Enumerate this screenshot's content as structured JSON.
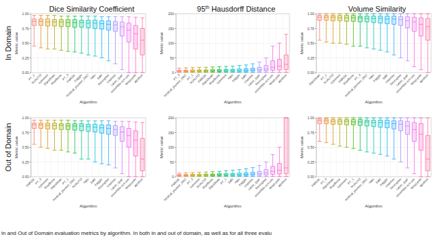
{
  "column_titles": [
    "Dice Similarity Coefficient",
    "95th Hausdorff Distance",
    "Volume Similarity"
  ],
  "row_labels": [
    "In Domain",
    "Out of Domain"
  ],
  "caption": "in and Out of Domain evaluation metrics by algorithm. In both in and out of domain, as well as for all three evalu",
  "chart_data": [
    {
      "type": "boxplot",
      "x_label": "Algorithm",
      "y_label": "Metric value",
      "grid": true,
      "ylim": [
        0,
        1
      ],
      "yticks": [
        {
          "value": 0,
          "label": "0.00"
        },
        {
          "value": 0.25,
          "label": "0.25"
        },
        {
          "value": 0.5,
          "label": "0.50"
        },
        {
          "value": 0.75,
          "label": "0.75"
        },
        {
          "value": 1,
          "label": "1.00"
        }
      ],
      "categories": [
        "PT_1",
        "NVAUTO",
        "kymenen",
        "Blackbean",
        "Bluefbone",
        "PT_3",
        "FMRSK",
        "Kaggle",
        "medical_pioneer_DBC",
        "Halo",
        "Sabi",
        "Neurophet",
        "Unterlee",
        "Lazer_quar",
        "ensemble-ocn-sim",
        "deepsynth",
        "apxthon"
      ],
      "colors": [
        "#F8766D",
        "#E7851E",
        "#D09400",
        "#B2A100",
        "#89AC00",
        "#45B500",
        "#00BC51",
        "#00C087",
        "#00C0B2",
        "#00BCD6",
        "#00B3F2",
        "#29A3FF",
        "#9C8DFF",
        "#D277FF",
        "#F166E8",
        "#FF61C7",
        "#FF689E"
      ],
      "values": [
        [
          0.45,
          0.8,
          0.87,
          0.91,
          0.97
        ],
        [
          0.42,
          0.8,
          0.87,
          0.91,
          0.97
        ],
        [
          0.4,
          0.79,
          0.86,
          0.91,
          0.97
        ],
        [
          0.4,
          0.79,
          0.86,
          0.9,
          0.97
        ],
        [
          0.38,
          0.78,
          0.86,
          0.9,
          0.96
        ],
        [
          0.36,
          0.78,
          0.85,
          0.9,
          0.96
        ],
        [
          0.35,
          0.77,
          0.85,
          0.9,
          0.96
        ],
        [
          0.33,
          0.77,
          0.85,
          0.89,
          0.96
        ],
        [
          0.3,
          0.76,
          0.84,
          0.89,
          0.96
        ],
        [
          0.28,
          0.75,
          0.84,
          0.89,
          0.96
        ],
        [
          0.25,
          0.74,
          0.83,
          0.88,
          0.95
        ],
        [
          0.2,
          0.72,
          0.82,
          0.88,
          0.95
        ],
        [
          0.15,
          0.7,
          0.81,
          0.87,
          0.95
        ],
        [
          0.05,
          0.62,
          0.78,
          0.86,
          0.95
        ],
        [
          0.0,
          0.52,
          0.72,
          0.84,
          0.95
        ],
        [
          0.0,
          0.4,
          0.66,
          0.8,
          0.94
        ],
        [
          0.0,
          0.3,
          0.55,
          0.75,
          0.93
        ]
      ]
    },
    {
      "type": "boxplot",
      "x_label": "Algorithm",
      "y_label": "Metric value",
      "grid": true,
      "ylim": [
        0,
        200
      ],
      "yticks": [
        0,
        50,
        100,
        150,
        200
      ],
      "categories": [
        "PT_3",
        "medical_pioneer_DBC",
        "PT_1",
        "NVAUTO",
        "FMRSK",
        "Blackbean",
        "Bluefbone",
        "kymenen",
        "Halo",
        "Kaggle",
        "Sabi",
        "Unterlee",
        "Lazer_quar",
        "Neurophet",
        "ensemble-ocn-sim",
        "deepsynth",
        "apxthon"
      ],
      "colors": [
        "#F8766D",
        "#E7851E",
        "#D09400",
        "#B2A100",
        "#89AC00",
        "#45B500",
        "#00BC51",
        "#00C087",
        "#00C0B2",
        "#00BCD6",
        "#00B3F2",
        "#29A3FF",
        "#9C8DFF",
        "#D277FF",
        "#F166E8",
        "#FF61C7",
        "#FF689E"
      ],
      "values": [
        [
          1,
          3,
          5,
          8,
          15
        ],
        [
          1,
          3,
          5,
          8,
          16
        ],
        [
          1,
          3,
          5,
          9,
          17
        ],
        [
          1,
          3,
          6,
          9,
          18
        ],
        [
          1,
          3,
          6,
          9,
          18
        ],
        [
          1,
          4,
          6,
          10,
          19
        ],
        [
          1,
          4,
          6,
          10,
          20
        ],
        [
          1,
          4,
          7,
          11,
          21
        ],
        [
          1,
          4,
          7,
          11,
          22
        ],
        [
          1,
          4,
          7,
          12,
          24
        ],
        [
          1,
          4,
          8,
          13,
          26
        ],
        [
          1,
          5,
          9,
          15,
          30
        ],
        [
          1,
          5,
          10,
          18,
          36
        ],
        [
          1,
          6,
          12,
          24,
          50
        ],
        [
          1,
          8,
          18,
          40,
          90
        ],
        [
          1,
          9,
          22,
          45,
          100
        ],
        [
          1,
          10,
          28,
          60,
          130
        ]
      ]
    },
    {
      "type": "boxplot",
      "x_label": "Algorithm",
      "y_label": "Metric value",
      "grid": true,
      "ylim": [
        0,
        1
      ],
      "yticks": [
        {
          "value": 0,
          "label": "0.00"
        },
        {
          "value": 0.25,
          "label": "0.25"
        },
        {
          "value": 0.5,
          "label": "0.50"
        },
        {
          "value": 0.75,
          "label": "0.75"
        },
        {
          "value": 1,
          "label": "1.00"
        }
      ],
      "categories": [
        "Blackbean",
        "PT_1",
        "NVAUTO",
        "kymenen",
        "FMRSK",
        "Bluefbone",
        "PT_3",
        "medical_pioneer_DBC",
        "Halo",
        "Kaggle",
        "Sabi",
        "Unterlee",
        "Neurophet",
        "Lazer_quar",
        "ensemble-ocn-sim",
        "deepsynth",
        "apxthon"
      ],
      "colors": [
        "#F8766D",
        "#E7851E",
        "#D09400",
        "#B2A100",
        "#89AC00",
        "#45B500",
        "#00BC51",
        "#00C087",
        "#00C0B2",
        "#00BCD6",
        "#00B3F2",
        "#29A3FF",
        "#9C8DFF",
        "#D277FF",
        "#F166E8",
        "#FF61C7",
        "#FF689E"
      ],
      "values": [
        [
          0.55,
          0.89,
          0.94,
          0.97,
          1.0
        ],
        [
          0.52,
          0.89,
          0.94,
          0.97,
          1.0
        ],
        [
          0.5,
          0.88,
          0.94,
          0.97,
          1.0
        ],
        [
          0.5,
          0.88,
          0.93,
          0.97,
          1.0
        ],
        [
          0.48,
          0.87,
          0.93,
          0.97,
          1.0
        ],
        [
          0.45,
          0.87,
          0.93,
          0.97,
          1.0
        ],
        [
          0.45,
          0.86,
          0.93,
          0.96,
          1.0
        ],
        [
          0.42,
          0.86,
          0.92,
          0.96,
          1.0
        ],
        [
          0.4,
          0.85,
          0.92,
          0.96,
          1.0
        ],
        [
          0.38,
          0.84,
          0.92,
          0.96,
          1.0
        ],
        [
          0.35,
          0.83,
          0.91,
          0.96,
          1.0
        ],
        [
          0.3,
          0.82,
          0.91,
          0.96,
          1.0
        ],
        [
          0.25,
          0.8,
          0.9,
          0.95,
          1.0
        ],
        [
          0.2,
          0.76,
          0.88,
          0.95,
          1.0
        ],
        [
          0.1,
          0.7,
          0.86,
          0.94,
          1.0
        ],
        [
          0.05,
          0.62,
          0.82,
          0.93,
          1.0
        ],
        [
          0.0,
          0.55,
          0.78,
          0.92,
          1.0
        ]
      ]
    },
    {
      "type": "boxplot",
      "x_label": "Algorithm",
      "y_label": "Metric value",
      "grid": true,
      "ylim": [
        0,
        1
      ],
      "yticks": [
        {
          "value": 0,
          "label": "0.00"
        },
        {
          "value": 0.25,
          "label": "0.25"
        },
        {
          "value": 0.5,
          "label": "0.50"
        },
        {
          "value": 0.75,
          "label": "0.75"
        },
        {
          "value": 1,
          "label": "1.00"
        }
      ],
      "categories": [
        "FMRSK",
        "PT_3",
        "kymenen",
        "Bluefbone",
        "Blackbean",
        "PT_1",
        "medical_pioneer_DBC",
        "NVAUTO",
        "Halo",
        "Sabi",
        "Kaggle",
        "Neurophet",
        "Unterlee",
        "Lazer_quar",
        "ensemble-ocn-sim",
        "deepsynth",
        "apxthon"
      ],
      "colors": [
        "#F8766D",
        "#E7851E",
        "#D09400",
        "#B2A100",
        "#89AC00",
        "#45B500",
        "#00BC51",
        "#00C087",
        "#00C0B2",
        "#00BCD6",
        "#00B3F2",
        "#29A3FF",
        "#9C8DFF",
        "#D277FF",
        "#F166E8",
        "#FF61C7",
        "#FF689E"
      ],
      "values": [
        [
          0.55,
          0.82,
          0.88,
          0.91,
          0.96
        ],
        [
          0.5,
          0.82,
          0.88,
          0.91,
          0.96
        ],
        [
          0.48,
          0.81,
          0.87,
          0.91,
          0.96
        ],
        [
          0.45,
          0.81,
          0.87,
          0.91,
          0.96
        ],
        [
          0.45,
          0.8,
          0.87,
          0.9,
          0.96
        ],
        [
          0.42,
          0.8,
          0.86,
          0.9,
          0.96
        ],
        [
          0.4,
          0.79,
          0.86,
          0.9,
          0.95
        ],
        [
          0.3,
          0.78,
          0.86,
          0.9,
          0.95
        ],
        [
          0.3,
          0.77,
          0.85,
          0.89,
          0.95
        ],
        [
          0.25,
          0.76,
          0.84,
          0.89,
          0.95
        ],
        [
          0.22,
          0.74,
          0.83,
          0.88,
          0.95
        ],
        [
          0.2,
          0.72,
          0.82,
          0.88,
          0.95
        ],
        [
          0.15,
          0.7,
          0.8,
          0.87,
          0.94
        ],
        [
          0.05,
          0.6,
          0.76,
          0.85,
          0.94
        ],
        [
          0.0,
          0.5,
          0.7,
          0.82,
          0.94
        ],
        [
          0.0,
          0.35,
          0.62,
          0.78,
          0.93
        ],
        [
          0.0,
          0.1,
          0.3,
          0.65,
          0.92
        ]
      ]
    },
    {
      "type": "boxplot",
      "x_label": "Algorithm",
      "y_label": "Metric value",
      "grid": true,
      "ylim": [
        0,
        200
      ],
      "yticks": [
        0,
        50,
        100,
        150,
        200
      ],
      "categories": [
        "FMRSK",
        "medical_pioneer_DBC",
        "PT_3",
        "kymenen",
        "NVAUTO",
        "Bluefbone",
        "Blackbean",
        "PT_1",
        "Sabi",
        "Halo",
        "Kaggle",
        "Unterlee",
        "Lazer_quar",
        "Neurophet",
        "ensemble-ocn-sim",
        "deepsynth",
        "apxthon"
      ],
      "colors": [
        "#F8766D",
        "#E7851E",
        "#D09400",
        "#B2A100",
        "#89AC00",
        "#45B500",
        "#00BC51",
        "#00C087",
        "#00C0B2",
        "#00BCD6",
        "#00B3F2",
        "#29A3FF",
        "#9C8DFF",
        "#D277FF",
        "#F166E8",
        "#FF61C7",
        "#FF689E"
      ],
      "values": [
        [
          1,
          3,
          5,
          7,
          12
        ],
        [
          1,
          3,
          5,
          7,
          13
        ],
        [
          1,
          3,
          5,
          8,
          14
        ],
        [
          1,
          3,
          5,
          8,
          15
        ],
        [
          1,
          3,
          6,
          9,
          16
        ],
        [
          1,
          3,
          6,
          9,
          17
        ],
        [
          1,
          4,
          6,
          10,
          18
        ],
        [
          1,
          4,
          6,
          10,
          20
        ],
        [
          1,
          4,
          7,
          11,
          22
        ],
        [
          1,
          4,
          7,
          12,
          24
        ],
        [
          1,
          4,
          8,
          13,
          27
        ],
        [
          1,
          5,
          9,
          15,
          31
        ],
        [
          1,
          5,
          10,
          18,
          38
        ],
        [
          1,
          6,
          13,
          24,
          50
        ],
        [
          1,
          8,
          18,
          35,
          75
        ],
        [
          1,
          9,
          22,
          45,
          100
        ],
        [
          1,
          10,
          30,
          200,
          200
        ]
      ]
    },
    {
      "type": "boxplot",
      "x_label": "Algorithm",
      "y_label": "Metric value",
      "grid": true,
      "ylim": [
        0,
        1
      ],
      "yticks": [
        {
          "value": 0,
          "label": "0.00"
        },
        {
          "value": 0.25,
          "label": "0.25"
        },
        {
          "value": 0.5,
          "label": "0.50"
        },
        {
          "value": 0.75,
          "label": "0.75"
        },
        {
          "value": 1,
          "label": "1.00"
        }
      ],
      "categories": [
        "FMRSK",
        "PT_3",
        "Blackbean",
        "Bluefbone",
        "kymenen",
        "PT_1",
        "NVAUTO",
        "medical_pioneer_DBC",
        "Halo",
        "Sabi",
        "Kaggle",
        "Unterlee",
        "Neurophet",
        "Lazer_quar",
        "ensemble-ocn-sim",
        "deepsynth",
        "apxthon"
      ],
      "colors": [
        "#F8766D",
        "#E7851E",
        "#D09400",
        "#B2A100",
        "#89AC00",
        "#45B500",
        "#00BC51",
        "#00C087",
        "#00C0B2",
        "#00BCD6",
        "#00B3F2",
        "#29A3FF",
        "#9C8DFF",
        "#D277FF",
        "#F166E8",
        "#FF61C7",
        "#FF689E"
      ],
      "values": [
        [
          0.6,
          0.9,
          0.95,
          0.98,
          1.0
        ],
        [
          0.58,
          0.9,
          0.95,
          0.98,
          1.0
        ],
        [
          0.55,
          0.89,
          0.94,
          0.97,
          1.0
        ],
        [
          0.52,
          0.89,
          0.94,
          0.97,
          1.0
        ],
        [
          0.5,
          0.88,
          0.94,
          0.97,
          1.0
        ],
        [
          0.48,
          0.88,
          0.93,
          0.97,
          1.0
        ],
        [
          0.45,
          0.87,
          0.93,
          0.97,
          1.0
        ],
        [
          0.42,
          0.86,
          0.93,
          0.96,
          1.0
        ],
        [
          0.4,
          0.85,
          0.92,
          0.96,
          1.0
        ],
        [
          0.38,
          0.84,
          0.92,
          0.96,
          1.0
        ],
        [
          0.35,
          0.83,
          0.91,
          0.96,
          1.0
        ],
        [
          0.3,
          0.81,
          0.9,
          0.95,
          1.0
        ],
        [
          0.25,
          0.78,
          0.89,
          0.95,
          1.0
        ],
        [
          0.15,
          0.72,
          0.86,
          0.94,
          1.0
        ],
        [
          0.05,
          0.6,
          0.8,
          0.92,
          1.0
        ],
        [
          0.0,
          0.45,
          0.72,
          0.9,
          1.0
        ],
        [
          0.0,
          0.1,
          0.3,
          0.7,
          1.0
        ]
      ]
    }
  ]
}
